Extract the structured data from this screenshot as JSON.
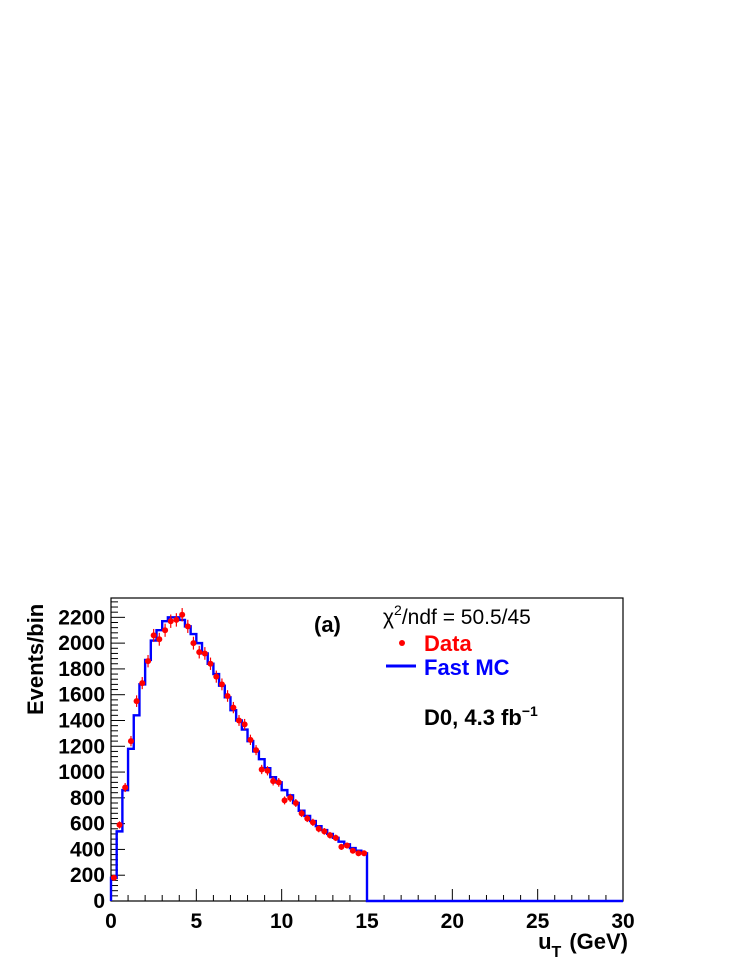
{
  "chart_data": {
    "type": "line",
    "xlabel_main": "u",
    "xlabel_sub": "T",
    "xlabel_unit": "(GeV)",
    "ylabel": "Events/bin",
    "xlim": [
      0,
      30
    ],
    "ylim": [
      0,
      2350
    ],
    "x_ticks": [
      0,
      5,
      10,
      15,
      20,
      25,
      30
    ],
    "x_tick_labels": [
      "0",
      "5",
      "10",
      "15",
      "20",
      "25",
      "30"
    ],
    "y_ticks": [
      0,
      200,
      400,
      600,
      800,
      1000,
      1200,
      1400,
      1600,
      1800,
      2000,
      2200
    ],
    "y_tick_labels": [
      "0",
      "200",
      "400",
      "600",
      "800",
      "1000",
      "1200",
      "1400",
      "1600",
      "1800",
      "2000",
      "2200"
    ],
    "grid": false,
    "legend_position": "top-right",
    "annotation_panel": "(a)",
    "annotation_chi_base": "χ",
    "annotation_chi_sup": "2",
    "annotation_chi_rest": "/ndf = 50.5/45",
    "annotation_exp_base": "D0, 4.3 fb",
    "annotation_exp_sup": "−1",
    "colors": {
      "data": "#ff0000",
      "mc": "#0000ff",
      "axis": "#000000"
    },
    "bin_width": 0.333,
    "series": [
      {
        "name": "Data",
        "style": "points-with-errors",
        "x": [
          0.17,
          0.5,
          0.83,
          1.17,
          1.5,
          1.83,
          2.17,
          2.5,
          2.83,
          3.17,
          3.5,
          3.83,
          4.17,
          4.5,
          4.83,
          5.17,
          5.5,
          5.83,
          6.17,
          6.5,
          6.83,
          7.17,
          7.5,
          7.83,
          8.17,
          8.5,
          8.83,
          9.17,
          9.5,
          9.83,
          10.17,
          10.5,
          10.83,
          11.17,
          11.5,
          11.83,
          12.17,
          12.5,
          12.83,
          13.17,
          13.5,
          13.83,
          14.17,
          14.5,
          14.83
        ],
        "y": [
          180,
          590,
          880,
          1240,
          1550,
          1690,
          1860,
          2060,
          2030,
          2100,
          2170,
          2180,
          2220,
          2130,
          2000,
          1930,
          1920,
          1840,
          1740,
          1680,
          1590,
          1500,
          1400,
          1370,
          1250,
          1170,
          1020,
          1010,
          930,
          920,
          780,
          800,
          760,
          680,
          640,
          610,
          560,
          540,
          510,
          490,
          420,
          430,
          390,
          370,
          370
        ],
        "yerr": [
          20,
          28,
          35,
          40,
          45,
          47,
          48,
          50,
          50,
          51,
          52,
          52,
          52,
          51,
          50,
          49,
          49,
          48,
          47,
          46,
          45,
          44,
          42,
          42,
          40,
          39,
          36,
          36,
          34,
          34,
          31,
          32,
          31,
          29,
          28,
          28,
          27,
          26,
          26,
          25,
          23,
          23,
          22,
          22,
          22
        ]
      },
      {
        "name": "Fast MC",
        "style": "step",
        "bin_edges": [
          0,
          0.333,
          0.667,
          1.0,
          1.333,
          1.667,
          2.0,
          2.333,
          2.667,
          3.0,
          3.333,
          3.667,
          4.0,
          4.333,
          4.667,
          5.0,
          5.333,
          5.667,
          6.0,
          6.333,
          6.667,
          7.0,
          7.333,
          7.667,
          8.0,
          8.333,
          8.667,
          9.0,
          9.333,
          9.667,
          10.0,
          10.333,
          10.667,
          11.0,
          11.333,
          11.667,
          12.0,
          12.333,
          12.667,
          13.0,
          13.333,
          13.667,
          14.0,
          14.333,
          14.667,
          15.0,
          30.0
        ],
        "values": [
          180,
          540,
          860,
          1180,
          1440,
          1680,
          1870,
          2020,
          2100,
          2170,
          2200,
          2200,
          2180,
          2130,
          2070,
          2000,
          1920,
          1840,
          1760,
          1670,
          1580,
          1480,
          1400,
          1330,
          1240,
          1160,
          1100,
          1030,
          960,
          920,
          860,
          820,
          760,
          700,
          660,
          620,
          580,
          550,
          520,
          490,
          460,
          440,
          410,
          390,
          370,
          0
        ]
      }
    ]
  }
}
